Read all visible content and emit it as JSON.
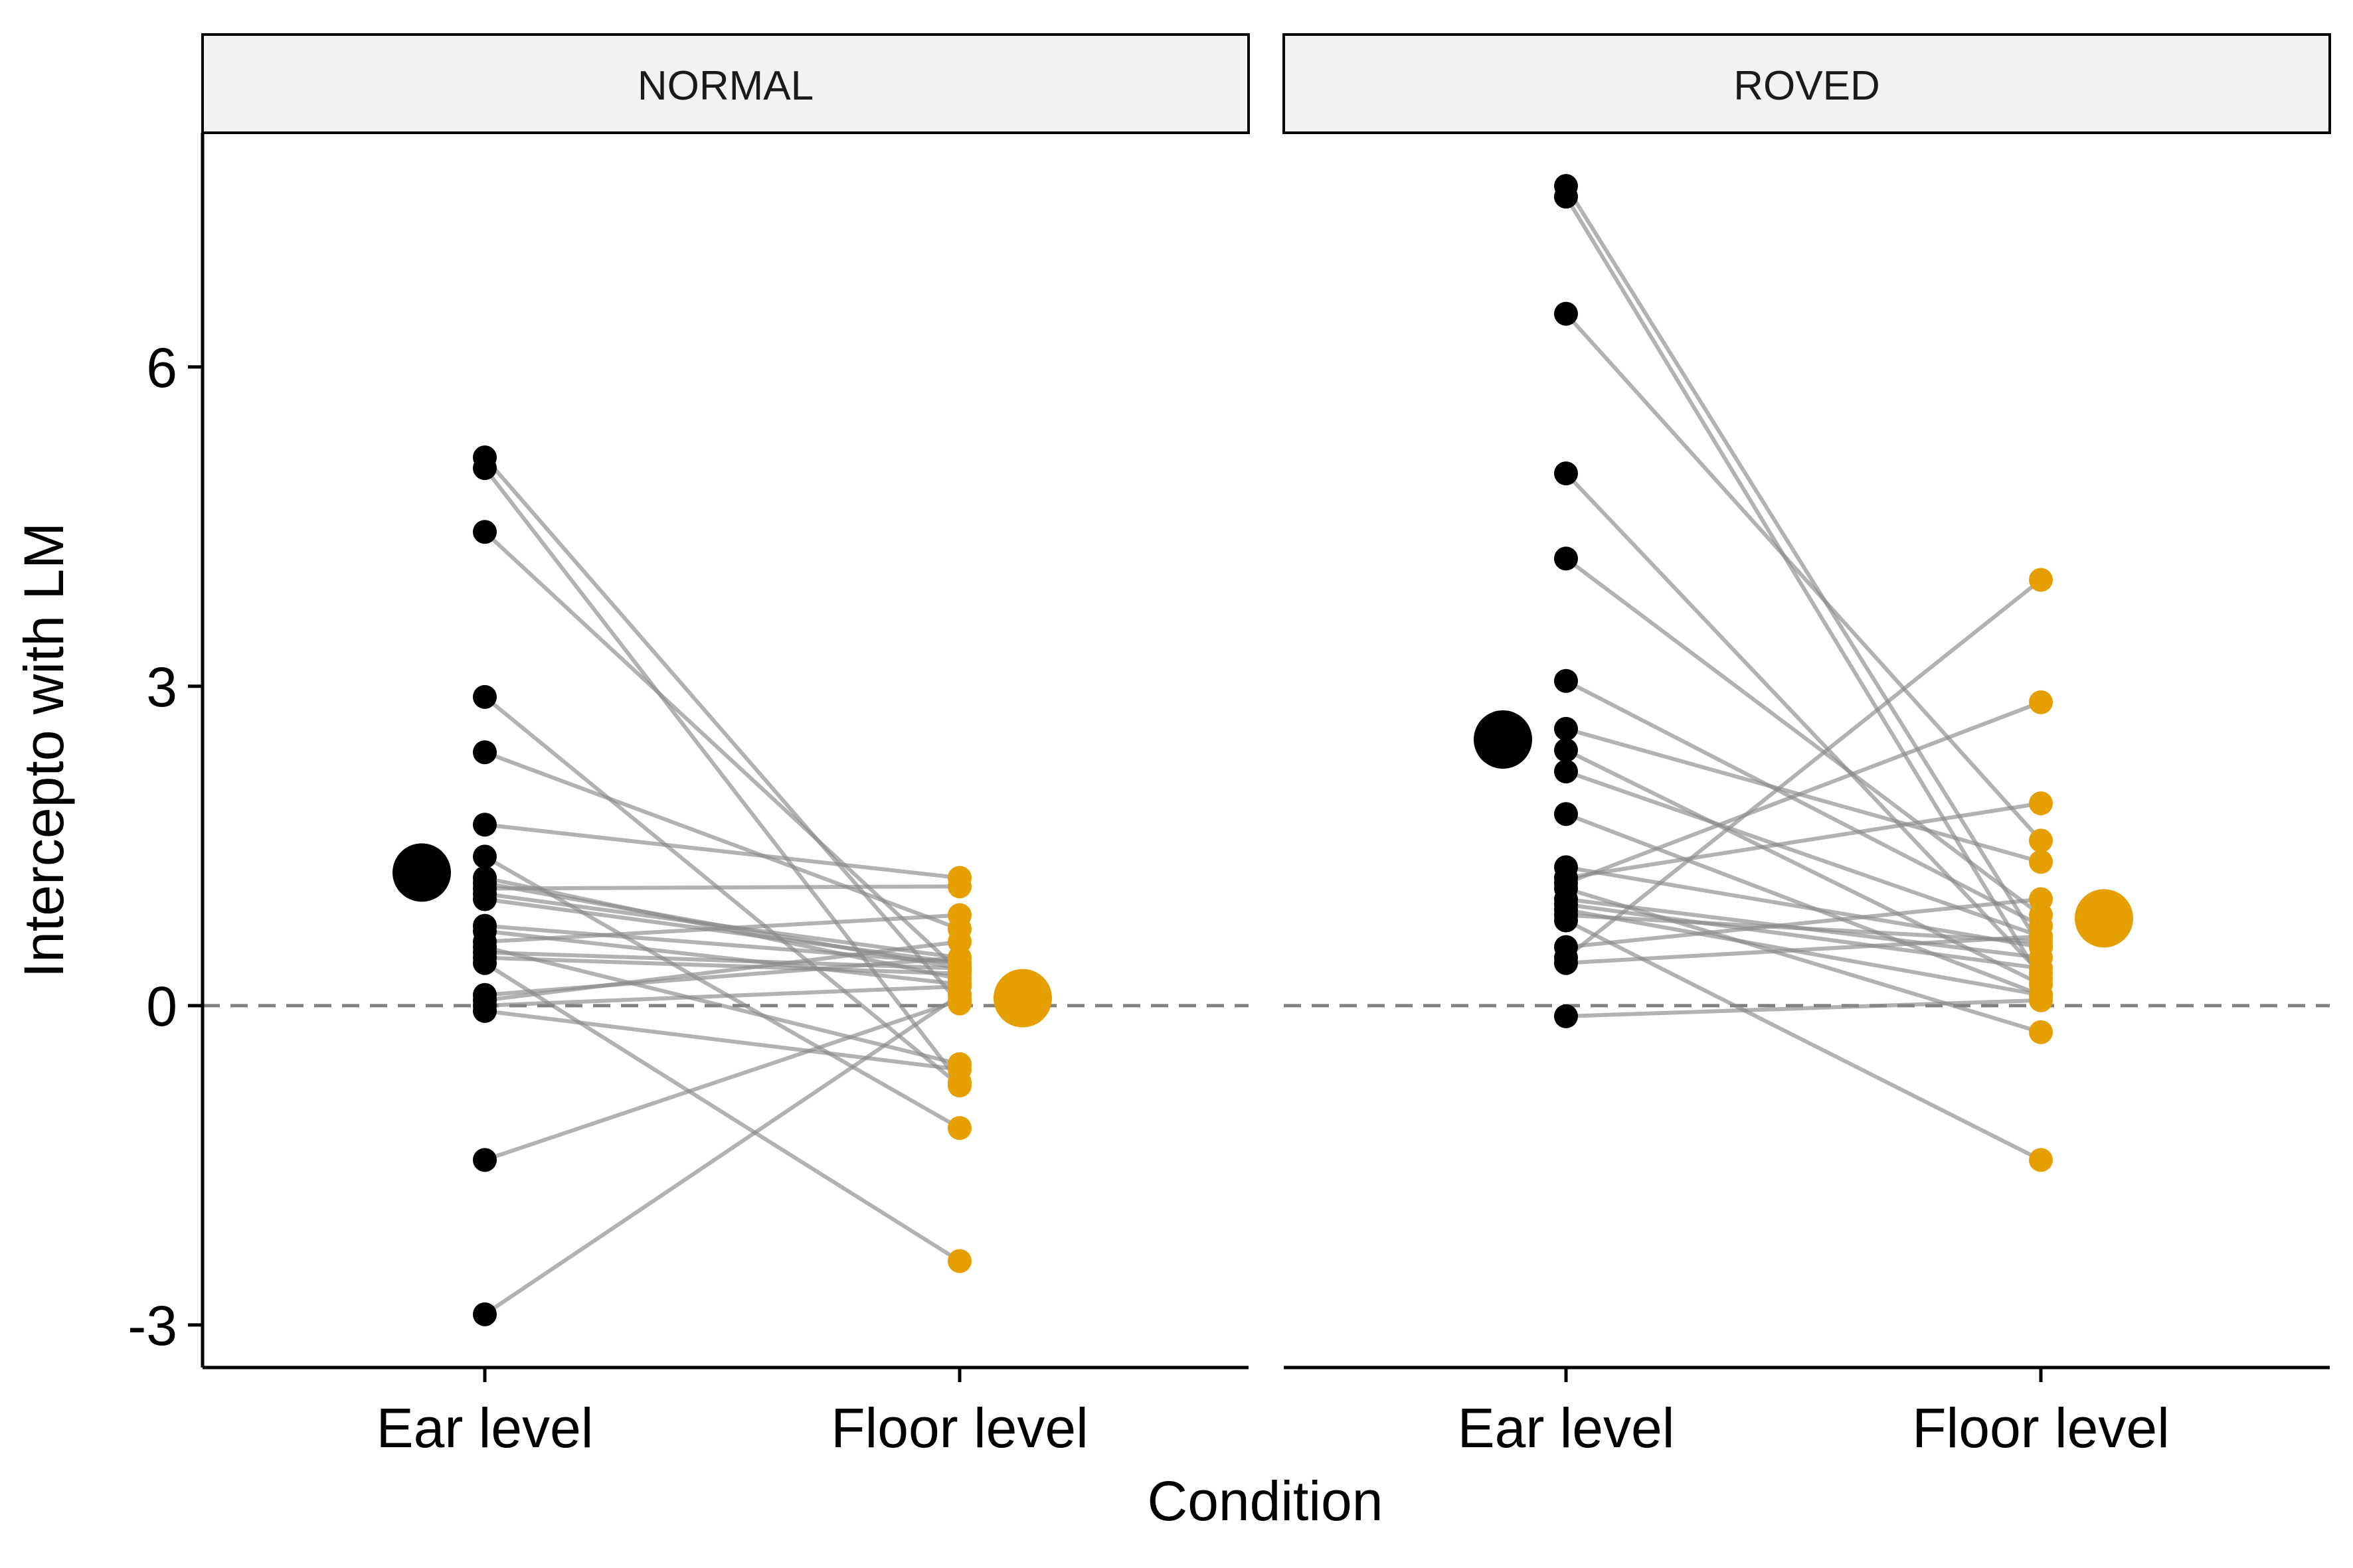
{
  "chart_data": {
    "type": "scatter",
    "ylabel": "Intercepto with LM",
    "xlabel": "Condition",
    "categories": [
      "Ear level",
      "Floor level"
    ],
    "y_ticks": [
      -3,
      0,
      3,
      6
    ],
    "y_tick_labels": [
      "-3",
      "0",
      "3",
      "6"
    ],
    "ylim": [
      -3.4,
      8.2
    ],
    "reference_line": 0,
    "grid": false,
    "legend": "none",
    "colors": {
      "ear": "#000000",
      "floor": "#E69F00",
      "pair_line": "#888888",
      "strip_fill": "#F2F2F2",
      "reference": "#808080"
    },
    "panels": [
      {
        "label": "NORMAL",
        "mean": {
          "ear": 1.25,
          "floor": 0.07
        },
        "pairs": [
          [
            5.15,
            0.02
          ],
          [
            5.05,
            -0.72
          ],
          [
            4.45,
            0.32
          ],
          [
            2.9,
            -0.75
          ],
          [
            2.38,
            0.72
          ],
          [
            1.7,
            1.2
          ],
          [
            1.4,
            -1.15
          ],
          [
            1.2,
            0.25
          ],
          [
            1.15,
            0.35
          ],
          [
            1.1,
            1.12
          ],
          [
            1.05,
            0.45
          ],
          [
            1.0,
            0.4
          ],
          [
            0.75,
            0.4
          ],
          [
            0.7,
            0.2
          ],
          [
            0.6,
            0.85
          ],
          [
            0.55,
            -0.55
          ],
          [
            0.5,
            0.35
          ],
          [
            0.45,
            0.3
          ],
          [
            0.4,
            -2.4
          ],
          [
            0.1,
            0.45
          ],
          [
            0.05,
            0.6
          ],
          [
            0.0,
            0.18
          ],
          [
            -0.05,
            -0.6
          ],
          [
            -1.45,
            0.05
          ],
          [
            -2.9,
            0.1
          ]
        ]
      },
      {
        "label": "ROVED",
        "mean": {
          "ear": 2.5,
          "floor": 0.82
        },
        "pairs": [
          [
            7.7,
            0.55
          ],
          [
            7.6,
            0.25
          ],
          [
            6.5,
            1.55
          ],
          [
            5.0,
            0.3
          ],
          [
            4.2,
            0.85
          ],
          [
            3.05,
            0.75
          ],
          [
            2.6,
            1.35
          ],
          [
            2.4,
            0.2
          ],
          [
            2.2,
            0.65
          ],
          [
            1.8,
            0.1
          ],
          [
            1.3,
            0.55
          ],
          [
            1.2,
            1.9
          ],
          [
            1.15,
            2.85
          ],
          [
            1.1,
            -0.25
          ],
          [
            1.0,
            0.45
          ],
          [
            0.95,
            0.35
          ],
          [
            0.9,
            0.1
          ],
          [
            0.85,
            0.6
          ],
          [
            0.8,
            -1.45
          ],
          [
            0.55,
            1.0
          ],
          [
            0.45,
            4.0
          ],
          [
            0.4,
            0.65
          ],
          [
            -0.1,
            0.05
          ]
        ]
      }
    ]
  }
}
